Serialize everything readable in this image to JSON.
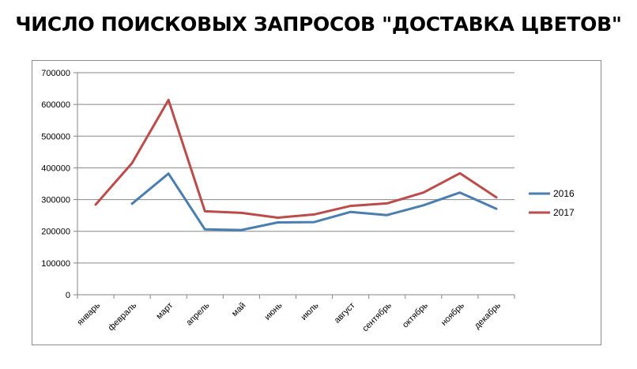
{
  "chart_data": {
    "type": "line",
    "title": "ЧИСЛО ПОИСКОВЫХ ЗАПРОСОВ \"ДОСТАВКА ЦВЕТОВ\"",
    "xlabel": "",
    "ylabel": "",
    "categories": [
      "январь",
      "февраль",
      "март",
      "апрель",
      "май",
      "июнь",
      "июль",
      "август",
      "сентябрь",
      "октябрь",
      "ноябрь",
      "декабрь"
    ],
    "yticks": [
      "0",
      "100000",
      "200000",
      "300000",
      "400000",
      "500000",
      "600000",
      "700000"
    ],
    "ylim": [
      0,
      700000
    ],
    "grid": true,
    "legend": "right",
    "series": [
      {
        "name": "2016",
        "color": "#4a7eb0",
        "values": [
          null,
          287000,
          382000,
          206000,
          204000,
          228000,
          229000,
          261000,
          251000,
          282000,
          322000,
          271000
        ]
      },
      {
        "name": "2017",
        "color": "#bc4b4a",
        "values": [
          284000,
          415000,
          614000,
          263000,
          258000,
          243000,
          253000,
          280000,
          288000,
          322000,
          383000,
          307000
        ]
      }
    ]
  }
}
